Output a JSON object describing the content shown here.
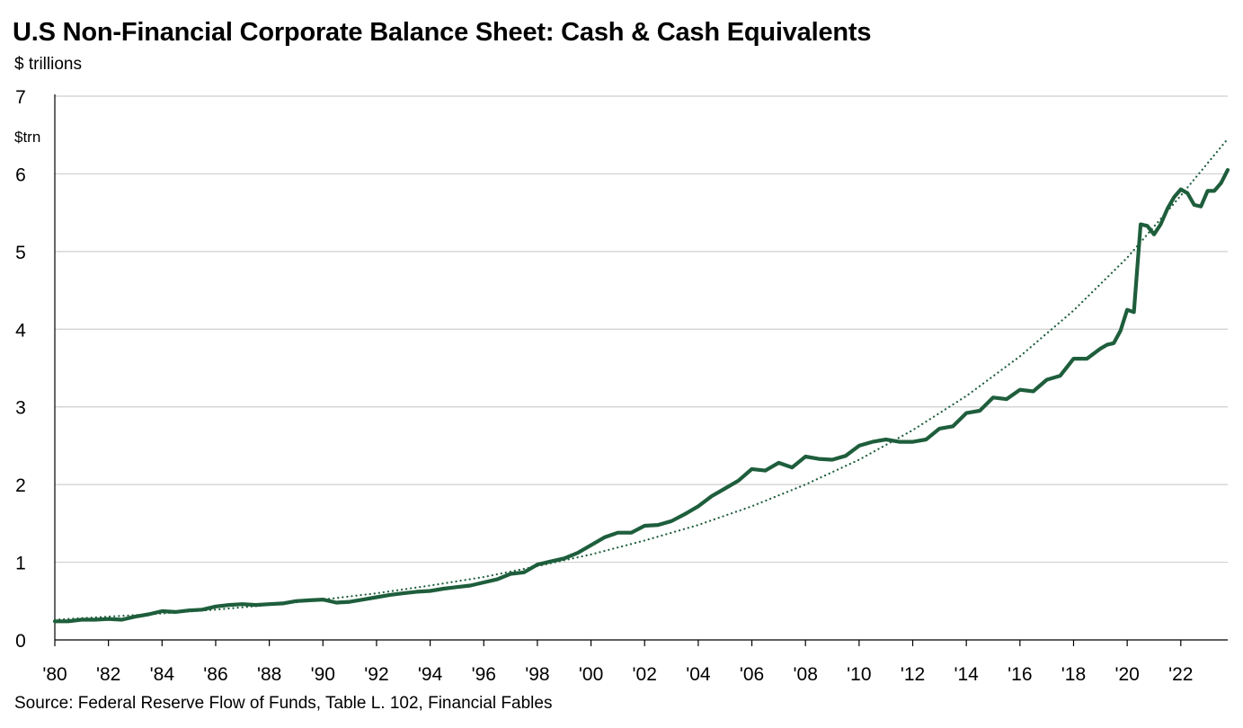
{
  "header": {
    "title": "U.S Non-Financial Corporate Balance Sheet: Cash & Cash Equivalents",
    "subtitle": "$ trillions"
  },
  "footer": {
    "source": "Source: Federal Reserve Flow of Funds, Table L. 102, Financial Fables"
  },
  "colors": {
    "series": "#1e5e3c",
    "trend": "#1e5e3c",
    "grid": "#cfcfcf",
    "axis": "#000000"
  },
  "chart_data": {
    "type": "line",
    "title": "U.S Non-Financial Corporate Balance Sheet: Cash & Cash Equivalents",
    "ylabel": "$ trillions",
    "unit_label": "$trn",
    "xlim": [
      1980,
      2023.75
    ],
    "ylim": [
      0,
      7
    ],
    "y_ticks": [
      0,
      1,
      2,
      3,
      4,
      5,
      6,
      7
    ],
    "x_ticks": [
      {
        "value": 1980,
        "label": "'80"
      },
      {
        "value": 1982,
        "label": "'82"
      },
      {
        "value": 1984,
        "label": "'84"
      },
      {
        "value": 1986,
        "label": "'86"
      },
      {
        "value": 1988,
        "label": "'88"
      },
      {
        "value": 1990,
        "label": "'90"
      },
      {
        "value": 1992,
        "label": "'92"
      },
      {
        "value": 1994,
        "label": "'94"
      },
      {
        "value": 1996,
        "label": "'96"
      },
      {
        "value": 1998,
        "label": "'98"
      },
      {
        "value": 2000,
        "label": "'00"
      },
      {
        "value": 2002,
        "label": "'02"
      },
      {
        "value": 2004,
        "label": "'04"
      },
      {
        "value": 2006,
        "label": "'06"
      },
      {
        "value": 2008,
        "label": "'08"
      },
      {
        "value": 2010,
        "label": "'10"
      },
      {
        "value": 2012,
        "label": "'12"
      },
      {
        "value": 2014,
        "label": "'14"
      },
      {
        "value": 2016,
        "label": "'16"
      },
      {
        "value": 2018,
        "label": "'18"
      },
      {
        "value": 2020,
        "label": "'20"
      },
      {
        "value": 2022,
        "label": "'22"
      }
    ],
    "grid": true,
    "series": [
      {
        "name": "Cash & Cash Equivalents",
        "style": "solid",
        "x": [
          1980.0,
          1980.5,
          1981.0,
          1981.5,
          1982.0,
          1982.5,
          1983.0,
          1983.5,
          1984.0,
          1984.5,
          1985.0,
          1985.5,
          1986.0,
          1986.5,
          1987.0,
          1987.5,
          1988.0,
          1988.5,
          1989.0,
          1989.5,
          1990.0,
          1990.5,
          1991.0,
          1991.5,
          1992.0,
          1992.5,
          1993.0,
          1993.5,
          1994.0,
          1994.5,
          1995.0,
          1995.5,
          1996.0,
          1996.5,
          1997.0,
          1997.5,
          1998.0,
          1998.5,
          1999.0,
          1999.5,
          2000.0,
          2000.5,
          2001.0,
          2001.5,
          2002.0,
          2002.5,
          2003.0,
          2003.5,
          2004.0,
          2004.5,
          2005.0,
          2005.5,
          2006.0,
          2006.5,
          2007.0,
          2007.5,
          2008.0,
          2008.5,
          2009.0,
          2009.5,
          2010.0,
          2010.5,
          2011.0,
          2011.5,
          2012.0,
          2012.5,
          2013.0,
          2013.5,
          2014.0,
          2014.5,
          2015.0,
          2015.5,
          2016.0,
          2016.5,
          2017.0,
          2017.5,
          2018.0,
          2018.5,
          2019.0,
          2019.25,
          2019.5,
          2019.75,
          2020.0,
          2020.25,
          2020.5,
          2020.75,
          2021.0,
          2021.25,
          2021.5,
          2021.75,
          2022.0,
          2022.25,
          2022.5,
          2022.75,
          2023.0,
          2023.25,
          2023.5,
          2023.75
        ],
        "values": [
          0.24,
          0.24,
          0.26,
          0.26,
          0.27,
          0.26,
          0.3,
          0.33,
          0.37,
          0.36,
          0.38,
          0.39,
          0.43,
          0.45,
          0.46,
          0.45,
          0.46,
          0.47,
          0.5,
          0.51,
          0.52,
          0.48,
          0.49,
          0.52,
          0.55,
          0.58,
          0.6,
          0.62,
          0.63,
          0.66,
          0.68,
          0.7,
          0.74,
          0.78,
          0.85,
          0.87,
          0.97,
          1.01,
          1.05,
          1.12,
          1.22,
          1.32,
          1.38,
          1.38,
          1.47,
          1.48,
          1.53,
          1.62,
          1.72,
          1.85,
          1.95,
          2.05,
          2.2,
          2.18,
          2.28,
          2.22,
          2.36,
          2.33,
          2.32,
          2.37,
          2.5,
          2.55,
          2.58,
          2.55,
          2.55,
          2.58,
          2.72,
          2.75,
          2.92,
          2.95,
          3.12,
          3.1,
          3.22,
          3.2,
          3.35,
          3.4,
          3.62,
          3.62,
          3.75,
          3.8,
          3.82,
          3.98,
          4.25,
          4.22,
          5.35,
          5.33,
          5.22,
          5.35,
          5.55,
          5.7,
          5.8,
          5.75,
          5.6,
          5.58,
          5.78,
          5.78,
          5.88,
          6.05
        ]
      },
      {
        "name": "Trend",
        "style": "dotted",
        "x": [
          1980,
          1982,
          1984,
          1986,
          1988,
          1990,
          1992,
          1994,
          1996,
          1998,
          2000,
          2002,
          2004,
          2006,
          2008,
          2010,
          2012,
          2014,
          2016,
          2018,
          2020,
          2022,
          2023.75
        ],
        "values": [
          0.26,
          0.3,
          0.34,
          0.39,
          0.45,
          0.52,
          0.6,
          0.7,
          0.81,
          0.95,
          1.1,
          1.28,
          1.48,
          1.72,
          2.0,
          2.32,
          2.7,
          3.14,
          3.65,
          4.24,
          4.92,
          5.72,
          6.45
        ]
      }
    ]
  }
}
